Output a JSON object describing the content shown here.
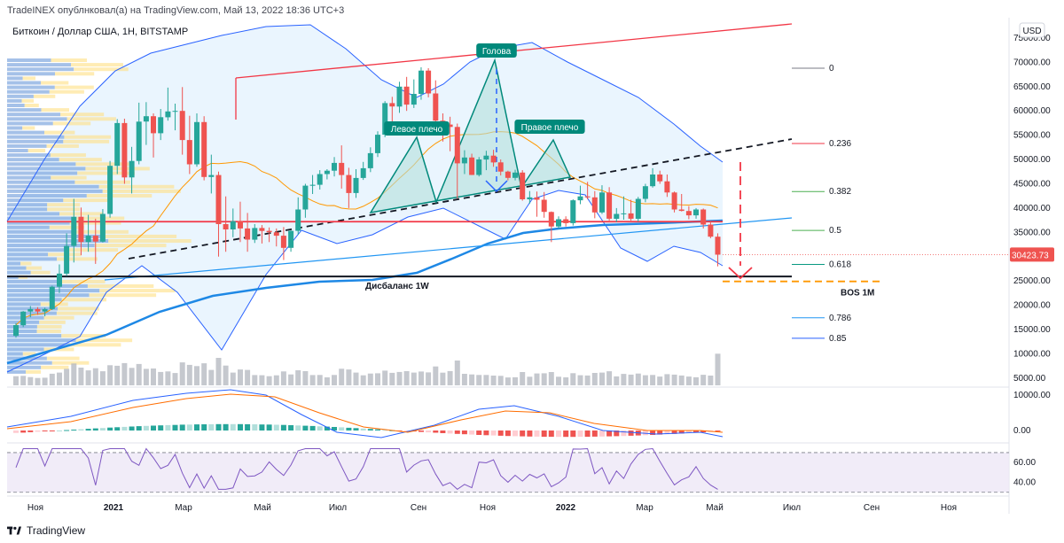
{
  "header": {
    "published": "TradeINEX опублнковал(а) на TradingView.com, Май 13, 2022 18:36 UTC+3",
    "symbol": "Биткоин / Доллар США, 1Н, BITSTAMP",
    "currency": "USD"
  },
  "footer": {
    "brand": "TradingView"
  },
  "chart_data": {
    "type": "line",
    "title": "",
    "timeframe": "1Н",
    "x_ticks": [
      "Ноя",
      "2021",
      "Мар",
      "Май",
      "Июл",
      "Сен",
      "Ноя",
      "2022",
      "Мар",
      "Май",
      "Июл",
      "Сен",
      "Ноя"
    ],
    "y_ticks": [
      75000,
      70000,
      65000,
      60000,
      55000,
      50000,
      45000,
      40000,
      35000,
      30000,
      25000,
      20000,
      15000,
      10000,
      5000
    ],
    "y_tick_labels": [
      "75000.00",
      "70000.00",
      "65000.00",
      "60000.00",
      "55000.00",
      "50000.00",
      "45000.00",
      "40000.00",
      "35000.00",
      "30000.00",
      "25000.00",
      "20000.00",
      "15000.00",
      "10000.00",
      "5000.00"
    ],
    "ylim": [
      3500,
      77000
    ],
    "last_price": 30423.73,
    "last_price_label": "30423.73",
    "candles": [
      [
        13700,
        16300,
        13300,
        15900
      ],
      [
        15900,
        18800,
        15500,
        18700
      ],
      [
        18700,
        19800,
        17500,
        19200
      ],
      [
        19200,
        19600,
        18000,
        18700
      ],
      [
        18700,
        19500,
        17700,
        19200
      ],
      [
        19200,
        24000,
        19000,
        23800
      ],
      [
        23800,
        28400,
        22500,
        26500
      ],
      [
        26500,
        34800,
        26000,
        32200
      ],
      [
        32200,
        41900,
        28800,
        38200
      ],
      [
        38200,
        40100,
        30300,
        33000
      ],
      [
        33000,
        38600,
        31000,
        34300
      ],
      [
        34300,
        37800,
        28500,
        33100
      ],
      [
        33100,
        39800,
        32900,
        38800
      ],
      [
        38800,
        49700,
        38000,
        48700
      ],
      [
        48700,
        58300,
        47000,
        57500
      ],
      [
        57500,
        58400,
        45000,
        46300
      ],
      [
        46300,
        52600,
        43000,
        49700
      ],
      [
        49700,
        61700,
        49000,
        57800
      ],
      [
        57800,
        61800,
        53000,
        58900
      ],
      [
        58900,
        59500,
        50400,
        55400
      ],
      [
        55400,
        60400,
        54000,
        58700
      ],
      [
        58700,
        64800,
        58000,
        59900
      ],
      [
        59900,
        61500,
        56000,
        60000
      ],
      [
        60000,
        64900,
        51000,
        54000
      ],
      [
        54000,
        59000,
        47000,
        49000
      ],
      [
        49000,
        59500,
        48500,
        57700
      ],
      [
        57700,
        58900,
        45700,
        46400
      ],
      [
        46400,
        51000,
        43000,
        46800
      ],
      [
        46800,
        47500,
        30000,
        36700
      ],
      [
        36700,
        42400,
        31000,
        35600
      ],
      [
        35600,
        39900,
        34000,
        37300
      ],
      [
        37300,
        41300,
        33000,
        35800
      ],
      [
        35800,
        39000,
        31000,
        33500
      ],
      [
        33500,
        36700,
        32800,
        35900
      ],
      [
        35900,
        36500,
        32700,
        35300
      ],
      [
        35300,
        36000,
        33000,
        35000
      ],
      [
        35000,
        35800,
        32100,
        34300
      ],
      [
        34300,
        36100,
        29300,
        31800
      ],
      [
        31800,
        35400,
        31000,
        35300
      ],
      [
        35300,
        42200,
        34500,
        39700
      ],
      [
        39700,
        45000,
        38000,
        44600
      ],
      [
        44600,
        46800,
        42900,
        44800
      ],
      [
        44800,
        47800,
        43800,
        47000
      ],
      [
        47000,
        48000,
        45900,
        47700
      ],
      [
        47700,
        50500,
        46500,
        49300
      ],
      [
        49300,
        52900,
        44000,
        46800
      ],
      [
        46800,
        48300,
        40000,
        43100
      ],
      [
        43100,
        48000,
        42100,
        46200
      ],
      [
        46200,
        49500,
        45800,
        48200
      ],
      [
        48200,
        52500,
        47400,
        51300
      ],
      [
        51300,
        55800,
        50500,
        55100
      ],
      [
        55100,
        62000,
        54600,
        61600
      ],
      [
        61600,
        62900,
        57200,
        60900
      ],
      [
        60900,
        66000,
        59600,
        65000
      ],
      [
        65000,
        67000,
        60000,
        61300
      ],
      [
        61300,
        66500,
        60600,
        63500
      ],
      [
        63500,
        69000,
        62300,
        68300
      ],
      [
        68300,
        68800,
        62800,
        63600
      ],
      [
        63600,
        66300,
        55600,
        58000
      ],
      [
        58000,
        59500,
        53700,
        57200
      ],
      [
        57200,
        58800,
        51700,
        56700
      ],
      [
        56700,
        57400,
        42000,
        49200
      ],
      [
        49200,
        51900,
        47000,
        50400
      ],
      [
        50400,
        51200,
        46800,
        46800
      ],
      [
        46800,
        50500,
        46500,
        50000
      ],
      [
        50000,
        51800,
        47800,
        50800
      ],
      [
        50800,
        52000,
        48500,
        49400
      ],
      [
        49400,
        50000,
        46700,
        47500
      ],
      [
        47500,
        47700,
        45700,
        46200
      ],
      [
        46200,
        47900,
        45700,
        47300
      ],
      [
        47300,
        47800,
        41500,
        41800
      ],
      [
        41800,
        43500,
        40900,
        42200
      ],
      [
        42200,
        43400,
        38200,
        41700
      ],
      [
        41700,
        43300,
        38000,
        39200
      ],
      [
        39200,
        39300,
        33000,
        36200
      ],
      [
        36200,
        38300,
        35700,
        37700
      ],
      [
        37700,
        38300,
        36200,
        36900
      ],
      [
        36900,
        41800,
        36400,
        41600
      ],
      [
        41600,
        44600,
        40800,
        42400
      ],
      [
        42400,
        45400,
        41800,
        42200
      ],
      [
        42200,
        43500,
        37900,
        39100
      ],
      [
        39100,
        44700,
        38800,
        43200
      ],
      [
        43200,
        44300,
        37400,
        37800
      ],
      [
        37800,
        40000,
        37100,
        38800
      ],
      [
        38800,
        42400,
        37600,
        38900
      ],
      [
        38900,
        41700,
        37400,
        37800
      ],
      [
        37800,
        42300,
        37200,
        41900
      ],
      [
        41900,
        45000,
        41200,
        44500
      ],
      [
        44500,
        48200,
        44200,
        46900
      ],
      [
        46900,
        47700,
        45000,
        45500
      ],
      [
        45500,
        46900,
        42300,
        43200
      ],
      [
        43200,
        43400,
        39100,
        39700
      ],
      [
        39700,
        42900,
        39300,
        39400
      ],
      [
        39400,
        40400,
        37700,
        38500
      ],
      [
        38500,
        40000,
        37800,
        39700
      ],
      [
        39700,
        39900,
        35800,
        36600
      ],
      [
        36600,
        37300,
        33800,
        34100
      ],
      [
        34100,
        34800,
        28000,
        30400
      ]
    ],
    "series": [
      {
        "name": "SMA",
        "values": []
      }
    ],
    "levels": [
      {
        "label": "Дисбаланс 1W",
        "price": 25900
      },
      {
        "label": "BOS 1M",
        "price": 24900
      },
      {
        "label": "",
        "price": 37200
      }
    ],
    "fib_levels": [
      {
        "label": "0",
        "price": 68800
      },
      {
        "label": "0.236",
        "price": 53300
      },
      {
        "label": "0.382",
        "price": 43400
      },
      {
        "label": "0.5",
        "price": 35400
      },
      {
        "label": "0.618",
        "price": 28400
      },
      {
        "label": "0.786",
        "price": 17400
      },
      {
        "label": "0.85",
        "price": 13200
      }
    ],
    "pattern_labels": {
      "left_shoulder": "Левое плечо",
      "head": "Голова",
      "right_shoulder": "Правое плечо"
    },
    "macd": {
      "y_ticks": [
        10000,
        0
      ],
      "y_tick_labels": [
        "10000.00",
        "0.00"
      ],
      "ylim": [
        -3000,
        11000
      ]
    },
    "rsi": {
      "y_ticks": [
        60,
        40
      ],
      "y_tick_labels": [
        "60.00",
        "40.00"
      ],
      "ylim": [
        28,
        78
      ]
    },
    "colors": {
      "up": "#26a69a",
      "down": "#ef5350",
      "bollinger": "#2962ff",
      "ema_long": "#1e88e5",
      "sma": "#ff9800",
      "resistance": "#f23645",
      "rsi": "#7e57c2"
    },
    "grid": false,
    "legend": "none"
  }
}
